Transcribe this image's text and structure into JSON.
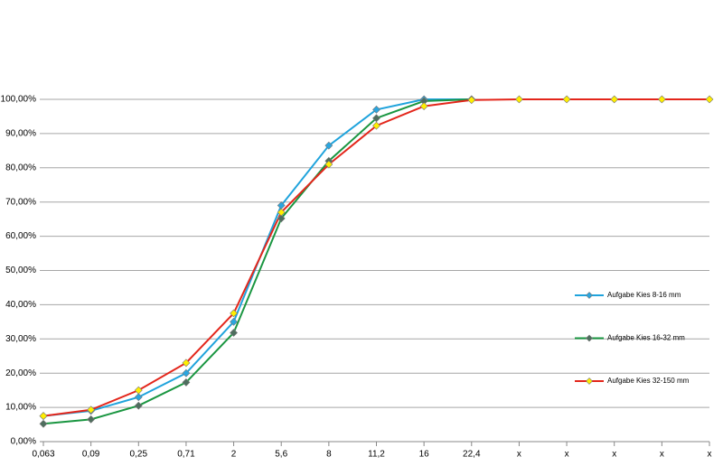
{
  "chart_data": {
    "type": "line",
    "categories": [
      "0,063",
      "0,09",
      "0,25",
      "0,71",
      "2",
      "5,6",
      "8",
      "11,2",
      "16",
      "22,4",
      "x",
      "x",
      "x",
      "x",
      "x"
    ],
    "series": [
      {
        "name": "Aufgabe Kies 8-16 mm",
        "color": "#1fa3dc",
        "marker_color": "#2aa6e0",
        "values": [
          7.5,
          9,
          13,
          20,
          35,
          69,
          86.5,
          97,
          100,
          100,
          null,
          null,
          null,
          null,
          null
        ]
      },
      {
        "name": "Aufgabe Kies 16-32 mm",
        "color": "#1a9641",
        "marker_color": "#4e6e5e",
        "values": [
          5.2,
          6.5,
          10.5,
          17.3,
          31.8,
          65.2,
          82,
          94.5,
          99.5,
          100,
          null,
          null,
          null,
          null,
          null
        ]
      },
      {
        "name": "Aufgabe Kies 32-150 mm",
        "color": "#e3261b",
        "marker_color": "#ffee00",
        "values": [
          7.5,
          9.3,
          15,
          23,
          37.5,
          67,
          81,
          92.3,
          98,
          99.8,
          100,
          100,
          100,
          100,
          100
        ]
      }
    ],
    "ylim": [
      0,
      100
    ],
    "yticks": [
      {
        "value": 0,
        "label": "0,00%"
      },
      {
        "value": 10,
        "label": "10,00%"
      },
      {
        "value": 20,
        "label": "20,00%"
      },
      {
        "value": 30,
        "label": "30,00%"
      },
      {
        "value": 40,
        "label": "40,00%"
      },
      {
        "value": 50,
        "label": "50,00%"
      },
      {
        "value": 60,
        "label": "60,00%"
      },
      {
        "value": 70,
        "label": "70,00%"
      },
      {
        "value": 80,
        "label": "80,00%"
      },
      {
        "value": 90,
        "label": "90,00%"
      },
      {
        "value": 100,
        "label": "100,00%"
      }
    ],
    "grid": true,
    "legend": "right"
  }
}
